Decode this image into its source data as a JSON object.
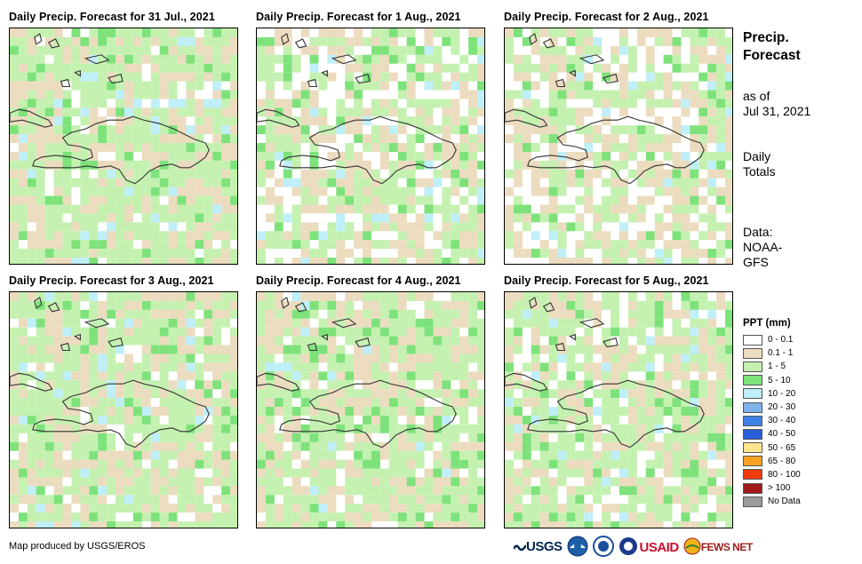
{
  "panels": [
    {
      "title": "Daily Precip. Forecast for 31 Jul., 2021",
      "seed": 11,
      "wet": 0.82
    },
    {
      "title": "Daily Precip. Forecast for 1 Aug., 2021",
      "seed": 23,
      "wet": 0.45
    },
    {
      "title": "Daily Precip. Forecast for 2 Aug., 2021",
      "seed": 37,
      "wet": 0.4
    },
    {
      "title": "Daily Precip. Forecast for 3 Aug., 2021",
      "seed": 41,
      "wet": 0.8
    },
    {
      "title": "Daily Precip. Forecast for 4 Aug., 2021",
      "seed": 53,
      "wet": 0.78
    },
    {
      "title": "Daily Precip. Forecast for 5 Aug., 2021",
      "seed": 67,
      "wet": 0.62
    }
  ],
  "side": {
    "title_line1": "Precip.",
    "title_line2": "Forecast",
    "asof_line1": "as of",
    "asof_line2": "Jul 31, 2021",
    "daily_line1": "Daily",
    "daily_line2": "Totals",
    "data_line1": "Data:",
    "data_line2": "NOAA-",
    "data_line3": "GFS"
  },
  "legend": {
    "title": "PPT (mm)",
    "items": [
      {
        "label": "0 - 0.1",
        "color": "#ffffff"
      },
      {
        "label": "0.1 - 1",
        "color": "#ecdcbf"
      },
      {
        "label": "1 - 5",
        "color": "#c4f1b0"
      },
      {
        "label": "5 - 10",
        "color": "#7de27a"
      },
      {
        "label": "10 - 20",
        "color": "#bfeff8"
      },
      {
        "label": "20 - 30",
        "color": "#7db2ea"
      },
      {
        "label": "30 - 40",
        "color": "#3f82e6"
      },
      {
        "label": "40 - 50",
        "color": "#2a5ed8"
      },
      {
        "label": "50 - 65",
        "color": "#fde58f"
      },
      {
        "label": "65 - 80",
        "color": "#f6a123"
      },
      {
        "label": "80 - 100",
        "color": "#f03b0f"
      },
      {
        "label": "> 100",
        "color": "#a01919"
      },
      {
        "label": "No Data",
        "color": "#9a9a9a"
      }
    ]
  },
  "credit": "Map produced by USGS/EROS",
  "logos": {
    "usgs": "USGS",
    "usaid": "USAID",
    "fewsnet": "FEWS NET"
  }
}
